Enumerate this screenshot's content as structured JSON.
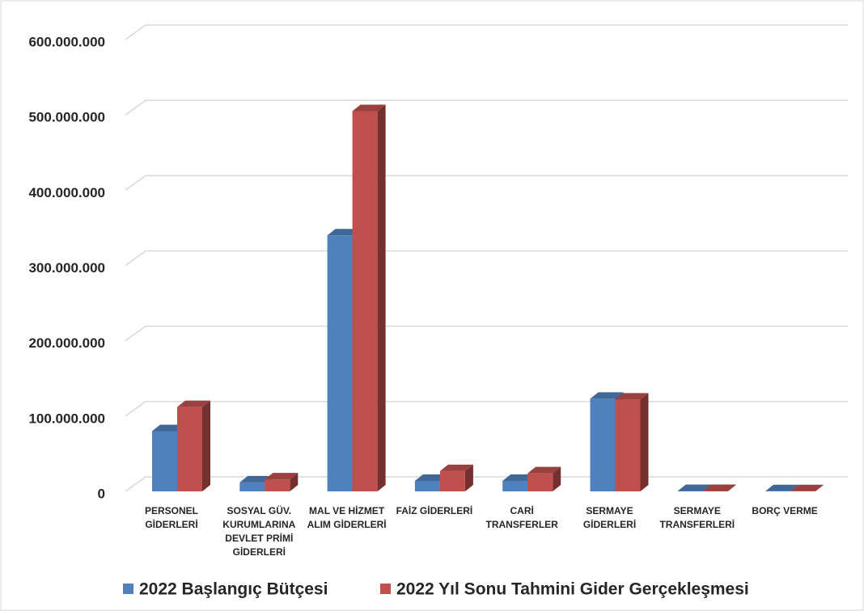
{
  "chart_data": {
    "type": "bar3d",
    "categories": [
      "PERSONEL\nGİDERLERİ",
      "SOSYAL GÜV.\nKURUMLARINA\nDEVLET PRİMİ\nGİDERLERİ",
      "MAL VE HİZMET\nALIM GİDERLERİ",
      "FAİZ GİDERLERİ",
      "CARİ\nTRANSFERLER",
      "SERMAYE\nGİDERLERİ",
      "SERMAYE\nTRANSFERLERİ",
      "BORÇ VERME"
    ],
    "series": [
      {
        "name": "2022 Başlangıç Bütçesi",
        "color": "#4f81bd",
        "values": [
          80000000,
          12000000,
          340000000,
          14000000,
          14000000,
          123000000,
          500000,
          300000
        ]
      },
      {
        "name": "2022 Yıl Sonu Tahmini Gider Gerçekleşmesi",
        "color": "#c0504d",
        "values": [
          112000000,
          16000000,
          505000000,
          27000000,
          24000000,
          122000000,
          500000,
          300000
        ]
      }
    ],
    "ylim": [
      0,
      600000000
    ],
    "yticks": [
      {
        "value": 0,
        "label": "0"
      },
      {
        "value": 100000000,
        "label": "100.000.000"
      },
      {
        "value": 200000000,
        "label": "200.000.000"
      },
      {
        "value": 300000000,
        "label": "300.000.000"
      },
      {
        "value": 400000000,
        "label": "400.000.000"
      },
      {
        "value": 500000000,
        "label": "500.000.000"
      },
      {
        "value": 600000000,
        "label": "600.000.000"
      }
    ],
    "grid": true,
    "legend": "bottom"
  }
}
